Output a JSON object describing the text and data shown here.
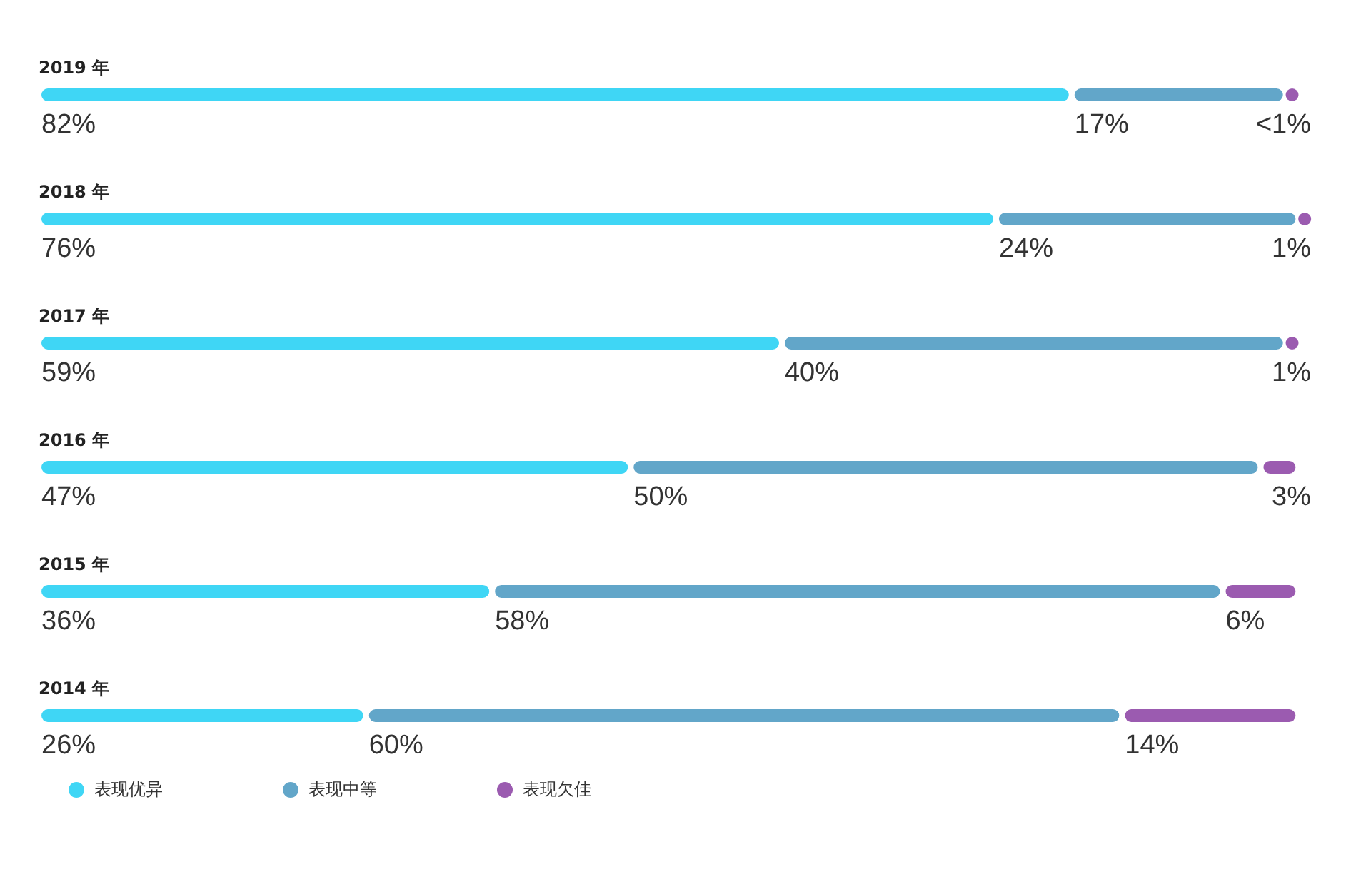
{
  "chart_data": {
    "type": "bar",
    "orientation": "horizontal",
    "stacked": true,
    "categories": [
      "2019 年",
      "2018 年",
      "2017 年",
      "2016 年",
      "2015 年",
      "2014 年"
    ],
    "series": [
      {
        "name": "表现优异",
        "color": "#3fd6f5",
        "values": [
          82,
          76,
          59,
          47,
          36,
          26
        ],
        "value_labels": [
          "82%",
          "76%",
          "59%",
          "47%",
          "36%",
          "26%"
        ]
      },
      {
        "name": "表现中等",
        "color": "#62a6c9",
        "values": [
          17,
          24,
          40,
          50,
          58,
          60
        ],
        "value_labels": [
          "17%",
          "24%",
          "40%",
          "50%",
          "58%",
          "60%"
        ]
      },
      {
        "name": "表现欠佳",
        "color": "#9b5bb0",
        "values": [
          1,
          1,
          1,
          3,
          6,
          14
        ],
        "value_labels": [
          "<1%",
          "1%",
          "1%",
          "3%",
          "6%",
          "14%"
        ]
      }
    ],
    "legend": "bottom"
  }
}
